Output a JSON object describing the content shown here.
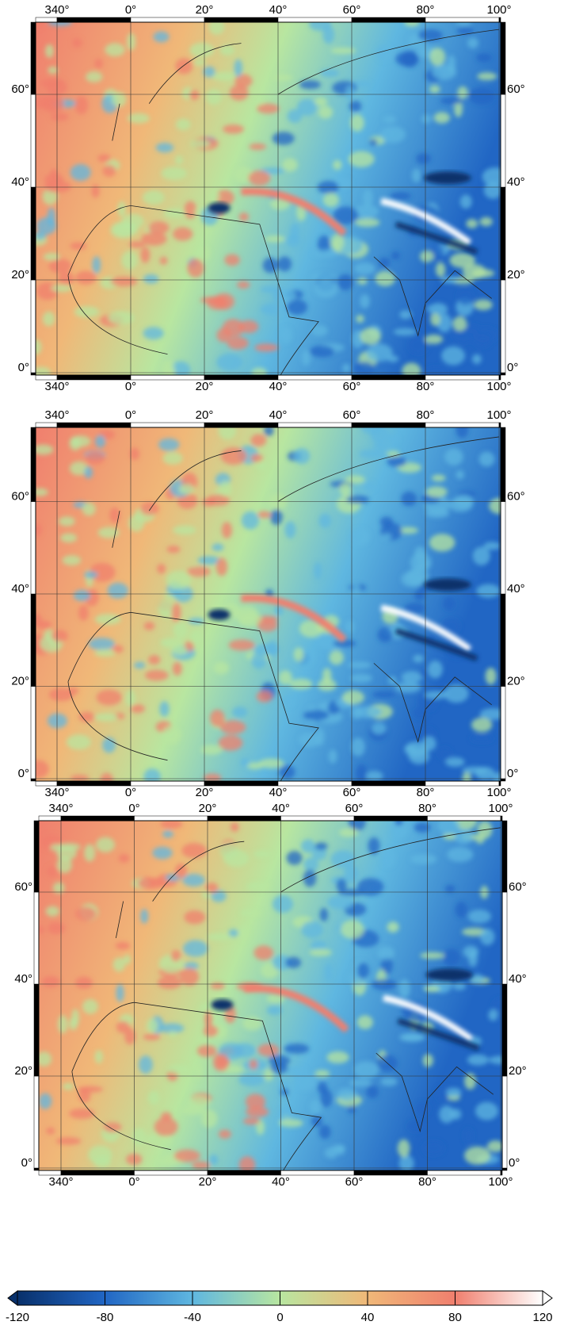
{
  "panels": [
    {
      "top_labels": [
        "340°",
        "0°",
        "20°",
        "40°",
        "60°",
        "80°",
        "100°"
      ],
      "bottom_labels": [
        "340°",
        "0°",
        "20°",
        "40°",
        "60°",
        "80°",
        "100°"
      ],
      "left_labels": [
        "0°",
        "20°",
        "40°",
        "60°"
      ],
      "right_labels": [
        "0°",
        "20°",
        "40°",
        "60°"
      ]
    },
    {
      "top_labels": [
        "340°",
        "0°",
        "20°",
        "40°",
        "60°",
        "80°",
        "100°"
      ],
      "bottom_labels": [
        "340°",
        "0°",
        "20°",
        "40°",
        "60°",
        "80°",
        "100°"
      ],
      "left_labels": [
        "0°",
        "20°",
        "40°",
        "60°"
      ],
      "right_labels": [
        "0°",
        "20°",
        "40°",
        "60°"
      ]
    },
    {
      "top_labels": [
        "340°",
        "0°",
        "20°",
        "40°",
        "60°",
        "80°",
        "100°"
      ],
      "bottom_labels": [
        "340°",
        "0°",
        "20°",
        "40°",
        "60°",
        "80°",
        "100°"
      ],
      "left_labels": [
        "0°",
        "20°",
        "40°",
        "60°"
      ],
      "right_labels": [
        "0°",
        "20°",
        "40°",
        "60°"
      ]
    }
  ],
  "colorbar": {
    "ticks": [
      -120,
      -80,
      -40,
      0,
      40,
      80,
      120
    ],
    "colors": [
      "#08306b",
      "#2166c4",
      "#5fb7e0",
      "#b8e6a0",
      "#f0b878",
      "#f07f6e",
      "#ffffff"
    ]
  }
}
